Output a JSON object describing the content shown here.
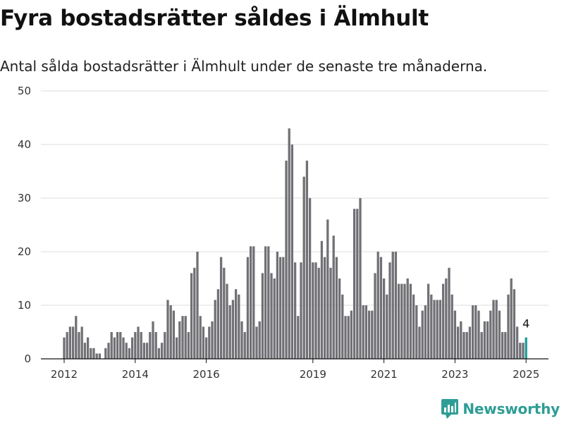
{
  "title": "Fyra bostadsrätter såldes i Älmhult",
  "subtitle": "Antal sålda bostadsrätter i Älmhult under de senaste tre månaderna.",
  "brand": {
    "name": "Newsworthy",
    "icon": "chart-bubble-icon",
    "color": "#2e9d95"
  },
  "chart_data": {
    "type": "bar",
    "title": "Fyra bostadsrätter såldes i Älmhult",
    "subtitle": "Antal sålda bostadsrätter i Älmhult under de senaste tre månaderna.",
    "xlabel": "",
    "ylabel": "",
    "ylim": [
      0,
      50
    ],
    "yticks": [
      0,
      10,
      20,
      30,
      40,
      50
    ],
    "xticks": [
      "2012",
      "2014",
      "2016",
      "2019",
      "2021",
      "2023",
      "2025"
    ],
    "grid": true,
    "legend": "none",
    "colors": {
      "bar": "#707075",
      "highlight": "#1a9e96"
    },
    "annotation": {
      "label": "4",
      "target": "last"
    },
    "series": [
      {
        "values": [
          4,
          5,
          6,
          6,
          8,
          5,
          6,
          3,
          4,
          2,
          2,
          1,
          1,
          0,
          2,
          3,
          5,
          4,
          5,
          5,
          4,
          3,
          2,
          4,
          5,
          6,
          5,
          3,
          3,
          5,
          7,
          5,
          2,
          3,
          5,
          11,
          10,
          9,
          4,
          7,
          8,
          8,
          5,
          16,
          17,
          20,
          8,
          6,
          4,
          6,
          7,
          11,
          13,
          19,
          17,
          14,
          10,
          11,
          13,
          12,
          7,
          5,
          19,
          21,
          21,
          6,
          7,
          16,
          21,
          21,
          16,
          15,
          20,
          19,
          19,
          37,
          43,
          40,
          18,
          8,
          18,
          34,
          37,
          30,
          18,
          18,
          17,
          22,
          19,
          26,
          17,
          23,
          19,
          15,
          12,
          8,
          8,
          9,
          28,
          28,
          30,
          10,
          10,
          9,
          9,
          16,
          20,
          19,
          15,
          12,
          18,
          20,
          20,
          14,
          14,
          14,
          15,
          14,
          12,
          10,
          6,
          9,
          10,
          14,
          12,
          11,
          11,
          11,
          14,
          15,
          17,
          12,
          9,
          6,
          7,
          5,
          5,
          6,
          10,
          10,
          9,
          5,
          7,
          7,
          9,
          11,
          11,
          9,
          5,
          5,
          12,
          15,
          13,
          6,
          3,
          3,
          4
        ]
      }
    ]
  }
}
